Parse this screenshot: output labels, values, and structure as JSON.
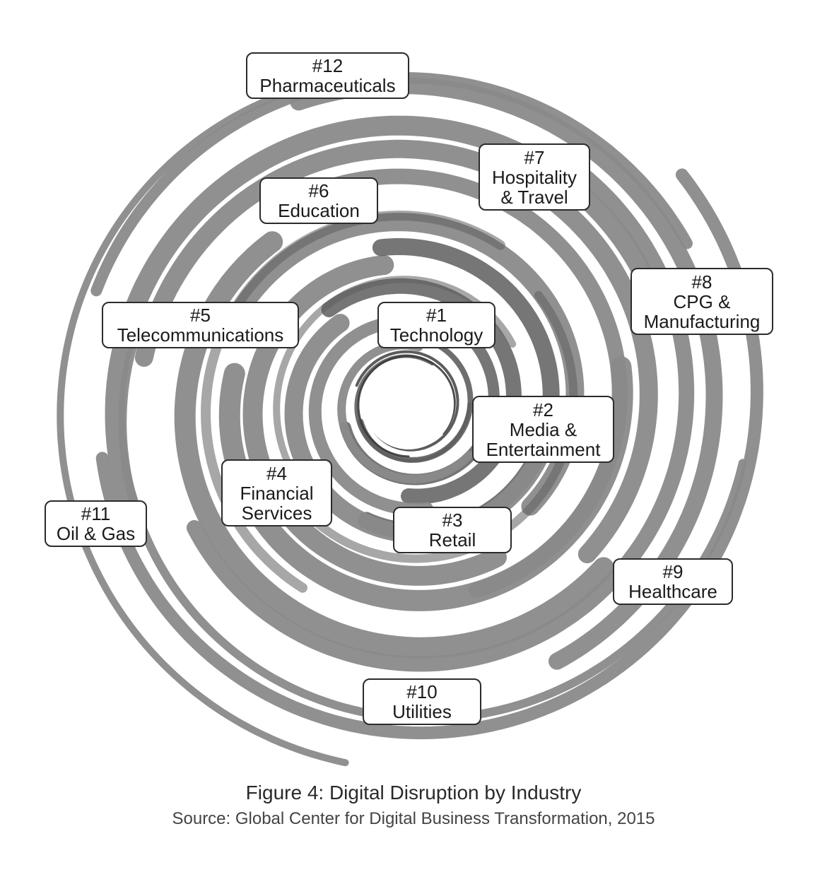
{
  "colors": {
    "band_light": "#8a8a8a",
    "band_dark": "#5e5e5e",
    "label_border": "#2b2b2b",
    "background": "#ffffff"
  },
  "industries": [
    {
      "rank": "#1",
      "lines": [
        "Technology"
      ]
    },
    {
      "rank": "#2",
      "lines": [
        "Media &",
        "Entertainment"
      ]
    },
    {
      "rank": "#3",
      "lines": [
        "Retail"
      ]
    },
    {
      "rank": "#4",
      "lines": [
        "Financial",
        "Services"
      ]
    },
    {
      "rank": "#5",
      "lines": [
        "Telecommunications"
      ]
    },
    {
      "rank": "#6",
      "lines": [
        "Education"
      ]
    },
    {
      "rank": "#7",
      "lines": [
        "Hospitality",
        "& Travel"
      ]
    },
    {
      "rank": "#8",
      "lines": [
        "CPG &",
        "Manufacturing"
      ]
    },
    {
      "rank": "#9",
      "lines": [
        "Healthcare"
      ]
    },
    {
      "rank": "#10",
      "lines": [
        "Utilities"
      ]
    },
    {
      "rank": "#11",
      "lines": [
        "Oil & Gas"
      ]
    },
    {
      "rank": "#12",
      "lines": [
        "Pharmaceuticals"
      ]
    }
  ],
  "caption": {
    "title": "Figure 4: Digital Disruption by Industry",
    "source": "Source: Global Center for Digital Business Transformation, 2015"
  }
}
